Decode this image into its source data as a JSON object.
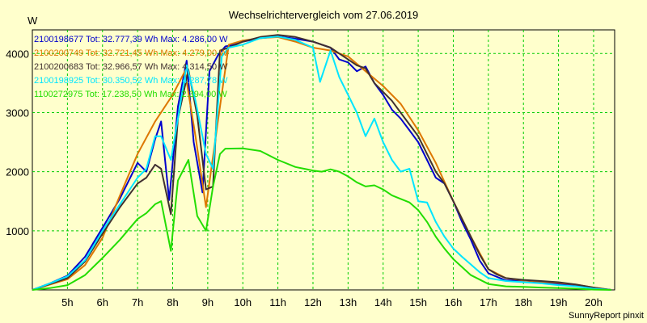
{
  "chart_data": {
    "type": "line",
    "title": "Wechselrichtervergleich vom 27.06.2019",
    "ylabel": "W",
    "xlabel": "",
    "footer": "SunnyReport pinxit",
    "xlim": [
      4.0,
      20.6
    ],
    "ylim": [
      0,
      4400
    ],
    "x_ticks": [
      {
        "value": 5,
        "label": "5h"
      },
      {
        "value": 6,
        "label": "6h"
      },
      {
        "value": 7,
        "label": "7h"
      },
      {
        "value": 8,
        "label": "8h"
      },
      {
        "value": 9,
        "label": "9h"
      },
      {
        "value": 10,
        "label": "10h"
      },
      {
        "value": 11,
        "label": "11h"
      },
      {
        "value": 12,
        "label": "12h"
      },
      {
        "value": 13,
        "label": "13h"
      },
      {
        "value": 14,
        "label": "14h"
      },
      {
        "value": 15,
        "label": "15h"
      },
      {
        "value": 16,
        "label": "16h"
      },
      {
        "value": 17,
        "label": "17h"
      },
      {
        "value": 18,
        "label": "18h"
      },
      {
        "value": 19,
        "label": "19h"
      },
      {
        "value": 20,
        "label": "20h"
      }
    ],
    "y_ticks": [
      1000,
      2000,
      3000,
      4000
    ],
    "grid": true,
    "legend_position": "top-left",
    "series": [
      {
        "name": "2100198677 Tot: 32.777,39 Wh Max: 4.286,00 W",
        "color": "#0000cc",
        "x": [
          4.0,
          4.5,
          5.0,
          5.5,
          6.0,
          6.5,
          7.0,
          7.25,
          7.5,
          7.67,
          7.9,
          8.15,
          8.4,
          8.6,
          8.85,
          9.05,
          9.3,
          9.5,
          9.75,
          10.0,
          10.5,
          11.0,
          11.5,
          12.0,
          12.5,
          12.75,
          13.0,
          13.25,
          13.5,
          13.75,
          14.0,
          14.25,
          14.5,
          14.75,
          15.0,
          15.25,
          15.5,
          15.75,
          16.0,
          16.25,
          16.5,
          16.75,
          17.0,
          17.5,
          18.0,
          18.5,
          19.0,
          19.5,
          20.0,
          20.5
        ],
        "values": [
          0,
          110,
          240,
          560,
          1050,
          1550,
          2150,
          2000,
          2550,
          2850,
          1520,
          3100,
          3880,
          2500,
          1650,
          3700,
          3980,
          4120,
          4150,
          4200,
          4260,
          4286,
          4250,
          4200,
          4100,
          3900,
          3850,
          3700,
          3780,
          3500,
          3300,
          3050,
          2900,
          2700,
          2500,
          2200,
          1900,
          1800,
          1500,
          1150,
          850,
          500,
          280,
          160,
          160,
          130,
          100,
          80,
          30,
          0
        ]
      },
      {
        "name": "2100200749 Tot: 32.721,45 Wh Max: 4.279,00 W",
        "color": "#dd7700",
        "x": [
          4.0,
          4.5,
          5.0,
          5.5,
          6.0,
          6.5,
          7.0,
          7.5,
          8.0,
          8.35,
          8.65,
          8.95,
          9.3,
          9.6,
          10.0,
          10.5,
          11.0,
          11.5,
          12.0,
          12.5,
          13.0,
          13.5,
          14.0,
          14.5,
          15.0,
          15.5,
          16.0,
          16.5,
          17.0,
          17.5,
          18.0,
          18.5,
          19.0,
          19.5,
          20.0,
          20.5
        ],
        "values": [
          0,
          90,
          180,
          420,
          880,
          1600,
          2300,
          2850,
          3300,
          3700,
          2600,
          1400,
          2900,
          4150,
          4220,
          4260,
          4279,
          4200,
          4100,
          4050,
          3950,
          3700,
          3450,
          3150,
          2700,
          2150,
          1500,
          900,
          350,
          200,
          160,
          140,
          120,
          90,
          40,
          0
        ]
      },
      {
        "name": "2100200683 Tot: 32.966,57 Wh Max: 4.314,50 W",
        "color": "#403030",
        "x": [
          4.0,
          4.5,
          5.0,
          5.5,
          6.0,
          6.5,
          7.0,
          7.25,
          7.5,
          7.67,
          7.95,
          8.15,
          8.45,
          8.7,
          8.95,
          9.15,
          9.35,
          9.6,
          10.0,
          10.5,
          11.0,
          11.5,
          12.0,
          12.5,
          12.75,
          13.0,
          13.25,
          13.5,
          13.75,
          14.0,
          14.25,
          14.5,
          14.75,
          15.0,
          15.25,
          15.5,
          15.75,
          16.0,
          16.25,
          16.5,
          16.75,
          17.0,
          17.25,
          17.5,
          18.0,
          18.5,
          19.0,
          19.5,
          20.0,
          20.5
        ],
        "values": [
          0,
          100,
          200,
          480,
          950,
          1400,
          1800,
          1900,
          2120,
          2050,
          1280,
          2900,
          3720,
          2950,
          1700,
          1750,
          4050,
          4100,
          4200,
          4280,
          4314,
          4280,
          4200,
          4100,
          4000,
          3900,
          3800,
          3750,
          3500,
          3350,
          3200,
          3000,
          2800,
          2600,
          2300,
          2000,
          1800,
          1500,
          1200,
          900,
          600,
          350,
          260,
          200,
          170,
          150,
          130,
          90,
          40,
          0
        ]
      },
      {
        "name": "2100198925 Tot: 30.350,52 Wh Max: 4.287,78 W",
        "color": "#00e5ff",
        "x": [
          4.0,
          4.5,
          5.0,
          5.5,
          6.0,
          6.5,
          7.0,
          7.25,
          7.5,
          7.67,
          7.95,
          8.15,
          8.4,
          8.65,
          8.95,
          9.15,
          9.4,
          9.6,
          10.0,
          10.5,
          11.0,
          11.5,
          12.0,
          12.2,
          12.5,
          12.75,
          13.0,
          13.25,
          13.5,
          13.75,
          14.0,
          14.25,
          14.5,
          14.75,
          15.0,
          15.25,
          15.5,
          15.75,
          16.0,
          16.25,
          16.5,
          16.75,
          17.0,
          17.5,
          18.0,
          18.5,
          19.0,
          19.5,
          20.0,
          20.5
        ],
        "values": [
          0,
          110,
          230,
          500,
          1000,
          1450,
          1900,
          2050,
          2600,
          2600,
          2200,
          2900,
          3800,
          3200,
          2300,
          2050,
          3950,
          4100,
          4150,
          4260,
          4287,
          4230,
          4100,
          3520,
          4050,
          3600,
          3300,
          3000,
          2600,
          2900,
          2500,
          2200,
          2000,
          2050,
          1500,
          1480,
          1150,
          900,
          700,
          560,
          430,
          300,
          200,
          150,
          130,
          110,
          80,
          60,
          20,
          0
        ]
      },
      {
        "name": "1100272975 Tot: 17.238,50 Wh Max: 2.394,00 W",
        "color": "#22dd00",
        "x": [
          4.0,
          4.5,
          5.0,
          5.5,
          6.0,
          6.5,
          7.0,
          7.25,
          7.5,
          7.67,
          7.95,
          8.15,
          8.45,
          8.7,
          8.95,
          9.15,
          9.35,
          9.5,
          10.0,
          10.5,
          11.0,
          11.5,
          12.0,
          12.25,
          12.5,
          12.75,
          13.0,
          13.25,
          13.5,
          13.75,
          14.0,
          14.25,
          14.5,
          14.75,
          15.0,
          15.25,
          15.5,
          15.75,
          16.0,
          16.5,
          17.0,
          17.5,
          18.0,
          18.5,
          19.0,
          19.5,
          20.0,
          20.5
        ],
        "values": [
          0,
          30,
          80,
          250,
          540,
          850,
          1200,
          1300,
          1450,
          1500,
          660,
          1850,
          2200,
          1250,
          1000,
          1750,
          2300,
          2390,
          2394,
          2350,
          2200,
          2080,
          2020,
          2000,
          2040,
          2000,
          1920,
          1820,
          1750,
          1770,
          1700,
          1600,
          1540,
          1480,
          1350,
          1150,
          900,
          700,
          520,
          250,
          100,
          60,
          50,
          40,
          30,
          20,
          5,
          0
        ]
      }
    ]
  }
}
